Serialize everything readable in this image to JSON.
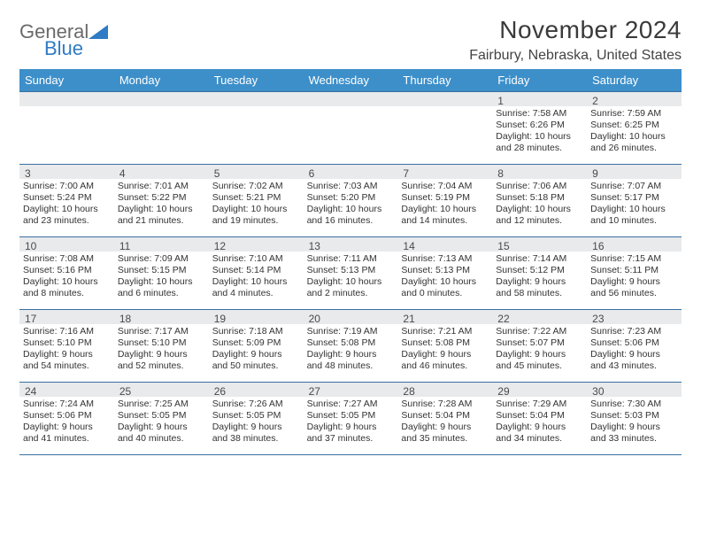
{
  "logo": {
    "line1": "General",
    "line2": "Blue"
  },
  "title": "November 2024",
  "location": "Fairbury, Nebraska, United States",
  "colors": {
    "header_bar": "#3d8fc9",
    "band": "#e8eaec",
    "rule": "#3a6fa0",
    "logo_gray": "#6a6a6a",
    "logo_blue": "#2f7bc4"
  },
  "dow": [
    "Sunday",
    "Monday",
    "Tuesday",
    "Wednesday",
    "Thursday",
    "Friday",
    "Saturday"
  ],
  "weeks": [
    [
      null,
      null,
      null,
      null,
      null,
      {
        "n": "1",
        "sr": "7:58 AM",
        "ss": "6:26 PM",
        "dl": "10 hours and 28 minutes."
      },
      {
        "n": "2",
        "sr": "7:59 AM",
        "ss": "6:25 PM",
        "dl": "10 hours and 26 minutes."
      }
    ],
    [
      {
        "n": "3",
        "sr": "7:00 AM",
        "ss": "5:24 PM",
        "dl": "10 hours and 23 minutes."
      },
      {
        "n": "4",
        "sr": "7:01 AM",
        "ss": "5:22 PM",
        "dl": "10 hours and 21 minutes."
      },
      {
        "n": "5",
        "sr": "7:02 AM",
        "ss": "5:21 PM",
        "dl": "10 hours and 19 minutes."
      },
      {
        "n": "6",
        "sr": "7:03 AM",
        "ss": "5:20 PM",
        "dl": "10 hours and 16 minutes."
      },
      {
        "n": "7",
        "sr": "7:04 AM",
        "ss": "5:19 PM",
        "dl": "10 hours and 14 minutes."
      },
      {
        "n": "8",
        "sr": "7:06 AM",
        "ss": "5:18 PM",
        "dl": "10 hours and 12 minutes."
      },
      {
        "n": "9",
        "sr": "7:07 AM",
        "ss": "5:17 PM",
        "dl": "10 hours and 10 minutes."
      }
    ],
    [
      {
        "n": "10",
        "sr": "7:08 AM",
        "ss": "5:16 PM",
        "dl": "10 hours and 8 minutes."
      },
      {
        "n": "11",
        "sr": "7:09 AM",
        "ss": "5:15 PM",
        "dl": "10 hours and 6 minutes."
      },
      {
        "n": "12",
        "sr": "7:10 AM",
        "ss": "5:14 PM",
        "dl": "10 hours and 4 minutes."
      },
      {
        "n": "13",
        "sr": "7:11 AM",
        "ss": "5:13 PM",
        "dl": "10 hours and 2 minutes."
      },
      {
        "n": "14",
        "sr": "7:13 AM",
        "ss": "5:13 PM",
        "dl": "10 hours and 0 minutes."
      },
      {
        "n": "15",
        "sr": "7:14 AM",
        "ss": "5:12 PM",
        "dl": "9 hours and 58 minutes."
      },
      {
        "n": "16",
        "sr": "7:15 AM",
        "ss": "5:11 PM",
        "dl": "9 hours and 56 minutes."
      }
    ],
    [
      {
        "n": "17",
        "sr": "7:16 AM",
        "ss": "5:10 PM",
        "dl": "9 hours and 54 minutes."
      },
      {
        "n": "18",
        "sr": "7:17 AM",
        "ss": "5:10 PM",
        "dl": "9 hours and 52 minutes."
      },
      {
        "n": "19",
        "sr": "7:18 AM",
        "ss": "5:09 PM",
        "dl": "9 hours and 50 minutes."
      },
      {
        "n": "20",
        "sr": "7:19 AM",
        "ss": "5:08 PM",
        "dl": "9 hours and 48 minutes."
      },
      {
        "n": "21",
        "sr": "7:21 AM",
        "ss": "5:08 PM",
        "dl": "9 hours and 46 minutes."
      },
      {
        "n": "22",
        "sr": "7:22 AM",
        "ss": "5:07 PM",
        "dl": "9 hours and 45 minutes."
      },
      {
        "n": "23",
        "sr": "7:23 AM",
        "ss": "5:06 PM",
        "dl": "9 hours and 43 minutes."
      }
    ],
    [
      {
        "n": "24",
        "sr": "7:24 AM",
        "ss": "5:06 PM",
        "dl": "9 hours and 41 minutes."
      },
      {
        "n": "25",
        "sr": "7:25 AM",
        "ss": "5:05 PM",
        "dl": "9 hours and 40 minutes."
      },
      {
        "n": "26",
        "sr": "7:26 AM",
        "ss": "5:05 PM",
        "dl": "9 hours and 38 minutes."
      },
      {
        "n": "27",
        "sr": "7:27 AM",
        "ss": "5:05 PM",
        "dl": "9 hours and 37 minutes."
      },
      {
        "n": "28",
        "sr": "7:28 AM",
        "ss": "5:04 PM",
        "dl": "9 hours and 35 minutes."
      },
      {
        "n": "29",
        "sr": "7:29 AM",
        "ss": "5:04 PM",
        "dl": "9 hours and 34 minutes."
      },
      {
        "n": "30",
        "sr": "7:30 AM",
        "ss": "5:03 PM",
        "dl": "9 hours and 33 minutes."
      }
    ]
  ],
  "labels": {
    "sunrise": "Sunrise:",
    "sunset": "Sunset:",
    "daylight": "Daylight:"
  }
}
